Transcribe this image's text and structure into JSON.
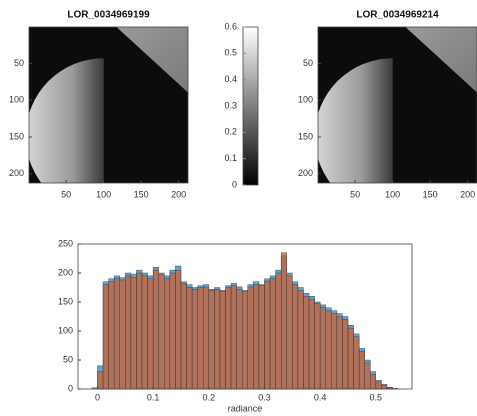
{
  "chart_data": [
    {
      "type": "image",
      "title": "LOR_0034969199",
      "xlim": [
        0.5,
        212.5
      ],
      "ylim": [
        0.5,
        212.5
      ],
      "y_reversed": true,
      "xticks": [
        50,
        100,
        150,
        200
      ],
      "yticks": [
        50,
        100,
        150,
        200
      ]
    },
    {
      "type": "colorbar",
      "ylim": [
        0,
        0.6
      ],
      "yticks": [
        0,
        0.1,
        0.2,
        0.3,
        0.4,
        0.5,
        0.6
      ],
      "colormap": [
        "#000000",
        "#ffffff"
      ]
    },
    {
      "type": "image",
      "title": "LOR_0034969214",
      "xlim": [
        0.5,
        212.5
      ],
      "ylim": [
        0.5,
        212.5
      ],
      "y_reversed": true,
      "xticks": [
        50,
        100,
        150,
        200
      ],
      "yticks": [
        50,
        100,
        150,
        200
      ]
    },
    {
      "type": "histogram",
      "xlabel": "radiance",
      "bins": [
        -0.01,
        0,
        0.01,
        0.02,
        0.03,
        0.04,
        0.05,
        0.06,
        0.07,
        0.08,
        0.09,
        0.1,
        0.11,
        0.12,
        0.13,
        0.14,
        0.15,
        0.16,
        0.17,
        0.18,
        0.19,
        0.2,
        0.21,
        0.22,
        0.23,
        0.24,
        0.25,
        0.26,
        0.27,
        0.28,
        0.29,
        0.3,
        0.31,
        0.32,
        0.33,
        0.34,
        0.35,
        0.36,
        0.37,
        0.38,
        0.39,
        0.4,
        0.41,
        0.42,
        0.43,
        0.44,
        0.45,
        0.46,
        0.47,
        0.48,
        0.49,
        0.5,
        0.51,
        0.52,
        0.53,
        0.54
      ],
      "series": [
        {
          "color": "#4a9bd1",
          "values": [
            2,
            40,
            185,
            190,
            195,
            192,
            200,
            198,
            205,
            200,
            195,
            210,
            200,
            195,
            205,
            212,
            185,
            180,
            175,
            178,
            180,
            172,
            175,
            170,
            178,
            182,
            176,
            170,
            180,
            185,
            180,
            190,
            195,
            205,
            230,
            200,
            185,
            175,
            165,
            160,
            150,
            145,
            140,
            135,
            130,
            125,
            110,
            95,
            70,
            50,
            30,
            15,
            8,
            3,
            1
          ]
        },
        {
          "color": "#c8643c",
          "values": [
            0,
            30,
            180,
            185,
            190,
            188,
            195,
            192,
            200,
            195,
            190,
            205,
            198,
            190,
            200,
            205,
            182,
            175,
            172,
            175,
            176,
            170,
            172,
            168,
            175,
            178,
            172,
            168,
            176,
            180,
            178,
            186,
            190,
            200,
            235,
            195,
            180,
            170,
            160,
            155,
            148,
            140,
            135,
            130,
            125,
            120,
            105,
            90,
            65,
            45,
            25,
            12,
            6,
            2,
            0
          ]
        }
      ],
      "xlim": [
        -0.035,
        0.565
      ],
      "ylim": [
        0,
        250
      ],
      "xticks": [
        0,
        0.1,
        0.2,
        0.3,
        0.4,
        0.5
      ],
      "yticks": [
        0,
        50,
        100,
        150,
        200,
        250
      ]
    }
  ]
}
